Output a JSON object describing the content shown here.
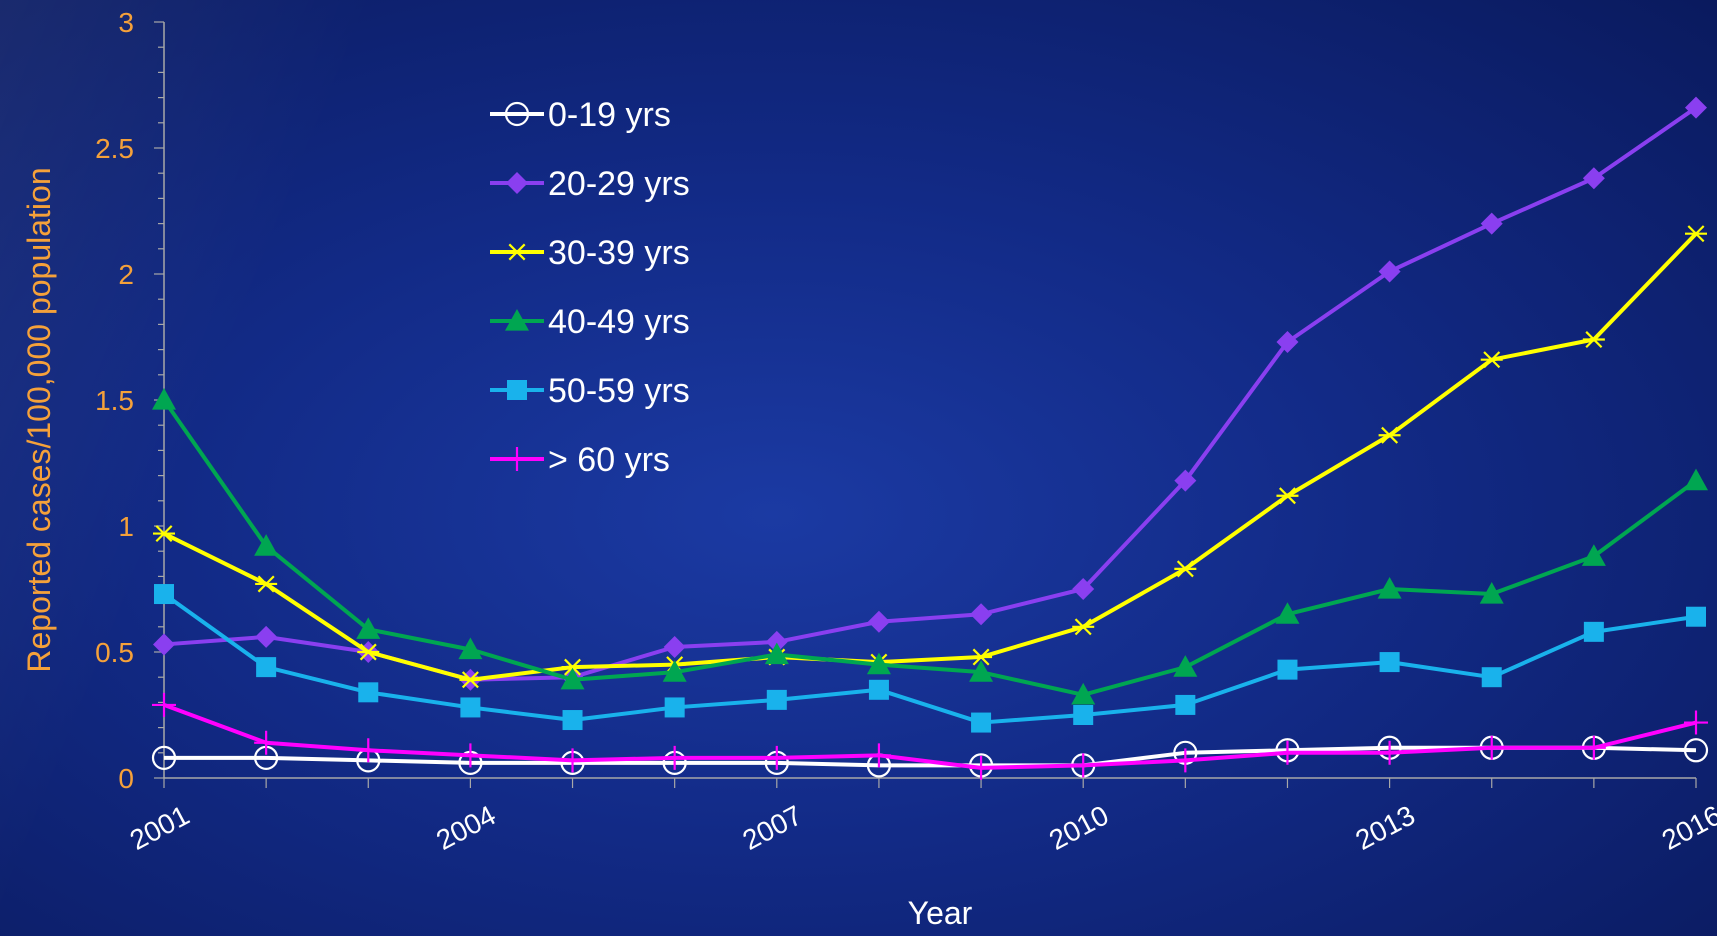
{
  "chart_data": {
    "type": "line",
    "title": "",
    "xlabel": "Year",
    "ylabel": "Reported cases/100,000 population",
    "x": [
      2001,
      2002,
      2003,
      2004,
      2005,
      2006,
      2007,
      2008,
      2009,
      2010,
      2011,
      2012,
      2013,
      2014,
      2015,
      2016
    ],
    "x_tick_labels": [
      "2001",
      "2004",
      "2007",
      "2010",
      "2013",
      "2016"
    ],
    "x_ticks": [
      2001,
      2004,
      2007,
      2010,
      2013,
      2016
    ],
    "y_tick_labels": [
      "0",
      "0.5",
      "1",
      "1.5",
      "2",
      "2.5",
      "3"
    ],
    "y_ticks": [
      0,
      0.5,
      1,
      1.5,
      2,
      2.5,
      3
    ],
    "xlim": [
      2001,
      2016
    ],
    "ylim": [
      0,
      3
    ],
    "grid": false,
    "legend_position": "top-center",
    "series": [
      {
        "name": "0-19 yrs",
        "color": "#ffffff",
        "marker": "circle",
        "values": [
          0.08,
          0.08,
          0.07,
          0.06,
          0.06,
          0.06,
          0.06,
          0.05,
          0.05,
          0.05,
          0.1,
          0.11,
          0.12,
          0.12,
          0.12,
          0.11
        ]
      },
      {
        "name": "20-29 yrs",
        "color": "#8a3ff0",
        "marker": "diamond",
        "values": [
          0.53,
          0.56,
          0.5,
          0.39,
          0.4,
          0.52,
          0.54,
          0.62,
          0.65,
          0.75,
          1.18,
          1.73,
          2.01,
          2.2,
          2.38,
          2.66
        ]
      },
      {
        "name": "30-39 yrs",
        "color": "#ffff00",
        "marker": "star",
        "values": [
          0.97,
          0.77,
          0.5,
          0.39,
          0.44,
          0.45,
          0.48,
          0.46,
          0.48,
          0.6,
          0.83,
          1.12,
          1.36,
          1.66,
          1.74,
          2.16
        ]
      },
      {
        "name": "40-49 yrs",
        "color": "#00a651",
        "marker": "triangle",
        "values": [
          1.5,
          0.92,
          0.59,
          0.51,
          0.39,
          0.42,
          0.49,
          0.45,
          0.42,
          0.33,
          0.44,
          0.65,
          0.75,
          0.73,
          0.88,
          1.18
        ]
      },
      {
        "name": "50-59 yrs",
        "color": "#19b2ec",
        "marker": "square",
        "values": [
          0.73,
          0.44,
          0.34,
          0.28,
          0.23,
          0.28,
          0.31,
          0.35,
          0.22,
          0.25,
          0.29,
          0.43,
          0.46,
          0.4,
          0.58,
          0.64
        ]
      },
      {
        "name": "> 60 yrs",
        "color": "#ff00ff",
        "marker": "plus",
        "values": [
          0.29,
          0.14,
          0.11,
          0.09,
          0.07,
          0.08,
          0.08,
          0.09,
          0.04,
          0.05,
          0.07,
          0.1,
          0.1,
          0.12,
          0.12,
          0.22
        ]
      }
    ],
    "colors": {
      "axis": "#a8a8a8",
      "tick_text": "#f5a13a",
      "axis_title_x": "#ffffff",
      "axis_title_y": "#f5a13a",
      "legend_text": "#ffffff"
    }
  }
}
